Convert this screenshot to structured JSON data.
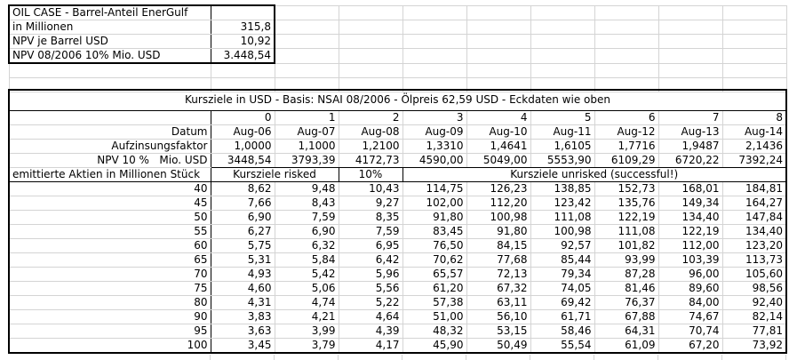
{
  "colors": {
    "background": "#ffffff",
    "gridline": "#d4d4d4",
    "border": "#000000",
    "text": "#000000"
  },
  "info_block": {
    "rows": [
      {
        "label": "OIL CASE - Barrel-Anteil EnerGulf",
        "value": ""
      },
      {
        "label": "in Millionen",
        "value": "315,8"
      },
      {
        "label": "NPV je Barrel USD",
        "value": "10,92"
      },
      {
        "label": "NPV 08/2006 10% Mio. USD",
        "value": "3.448,54"
      }
    ]
  },
  "table": {
    "title": "Kursziele in USD - Basis: NSAI 08/2006 - Ölpreis 62,59 USD - Eckdaten wie oben",
    "index_row": [
      "0",
      "1",
      "2",
      "3",
      "4",
      "5",
      "6",
      "7",
      "8"
    ],
    "param_rows": [
      {
        "label": "Datum",
        "values": [
          "Aug-06",
          "Aug-07",
          "Aug-08",
          "Aug-09",
          "Aug-10",
          "Aug-11",
          "Aug-12",
          "Aug-13",
          "Aug-14"
        ]
      },
      {
        "label": "Aufzinsungsfaktor",
        "values": [
          "1,0000",
          "1,1000",
          "1,2100",
          "1,3310",
          "1,4641",
          "1,6105",
          "1,7716",
          "1,9487",
          "2,1436"
        ]
      },
      {
        "label": "NPV 10 %   Mio. USD",
        "values": [
          "3448,54",
          "3793,39",
          "4172,73",
          "4590,00",
          "5049,00",
          "5553,90",
          "6109,29",
          "6720,22",
          "7392,24"
        ]
      }
    ],
    "group_row": {
      "label": "emittierte Aktien in Millionen Stück",
      "risked": "Kursziele risked",
      "discount": "10%",
      "unrisked": "Kursziele unrisked (successful!)"
    },
    "data_rows": [
      {
        "shares": "40",
        "values": [
          "8,62",
          "9,48",
          "10,43",
          "114,75",
          "126,23",
          "138,85",
          "152,73",
          "168,01",
          "184,81"
        ]
      },
      {
        "shares": "45",
        "values": [
          "7,66",
          "8,43",
          "9,27",
          "102,00",
          "112,20",
          "123,42",
          "135,76",
          "149,34",
          "164,27"
        ]
      },
      {
        "shares": "50",
        "values": [
          "6,90",
          "7,59",
          "8,35",
          "91,80",
          "100,98",
          "111,08",
          "122,19",
          "134,40",
          "147,84"
        ]
      },
      {
        "shares": "55",
        "values": [
          "6,27",
          "6,90",
          "7,59",
          "83,45",
          "91,80",
          "100,98",
          "111,08",
          "122,19",
          "134,40"
        ]
      },
      {
        "shares": "60",
        "values": [
          "5,75",
          "6,32",
          "6,95",
          "76,50",
          "84,15",
          "92,57",
          "101,82",
          "112,00",
          "123,20"
        ]
      },
      {
        "shares": "65",
        "values": [
          "5,31",
          "5,84",
          "6,42",
          "70,62",
          "77,68",
          "85,44",
          "93,99",
          "103,39",
          "113,73"
        ]
      },
      {
        "shares": "70",
        "values": [
          "4,93",
          "5,42",
          "5,96",
          "65,57",
          "72,13",
          "79,34",
          "87,28",
          "96,00",
          "105,60"
        ]
      },
      {
        "shares": "75",
        "values": [
          "4,60",
          "5,06",
          "5,56",
          "61,20",
          "67,32",
          "74,05",
          "81,46",
          "89,60",
          "98,56"
        ]
      },
      {
        "shares": "80",
        "values": [
          "4,31",
          "4,74",
          "5,22",
          "57,38",
          "63,11",
          "69,42",
          "76,37",
          "84,00",
          "92,40"
        ]
      },
      {
        "shares": "90",
        "values": [
          "3,83",
          "4,21",
          "4,64",
          "51,00",
          "56,10",
          "61,71",
          "67,88",
          "74,67",
          "82,14"
        ]
      },
      {
        "shares": "95",
        "values": [
          "3,63",
          "3,99",
          "4,39",
          "48,32",
          "53,15",
          "58,46",
          "64,31",
          "70,74",
          "77,81"
        ]
      },
      {
        "shares": "100",
        "values": [
          "3,45",
          "3,79",
          "4,17",
          "45,90",
          "50,49",
          "55,54",
          "61,09",
          "67,20",
          "73,92"
        ]
      }
    ]
  }
}
